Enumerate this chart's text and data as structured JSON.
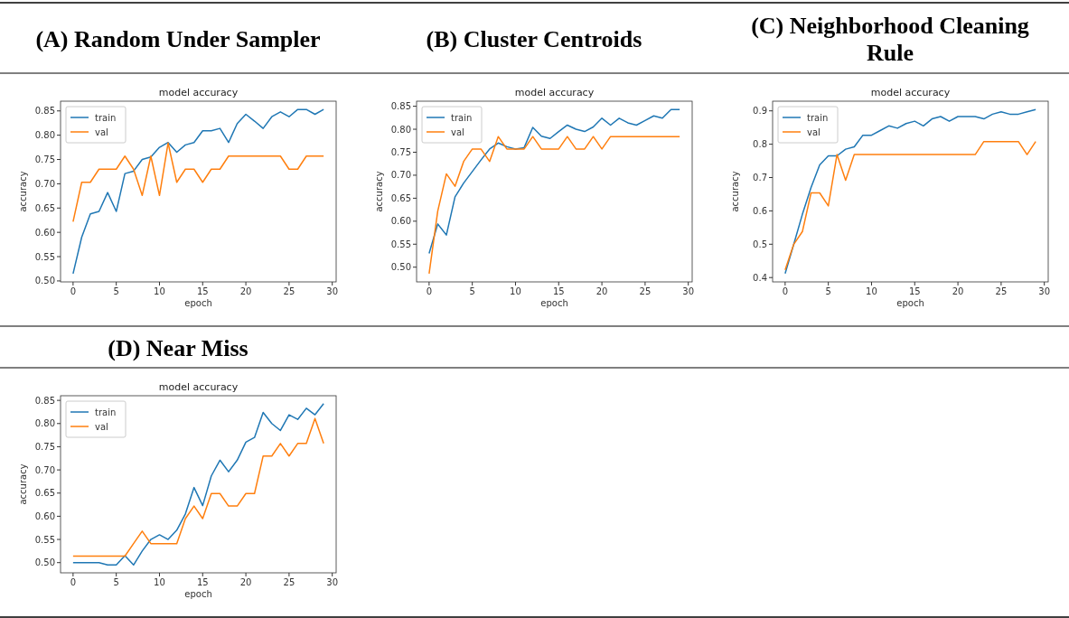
{
  "chart_data": [
    {
      "type": "line",
      "title": "(A) Random Under Sampler",
      "subtitle": "model accuracy",
      "xlabel": "epoch",
      "ylabel": "accuracy",
      "x": [
        0,
        1,
        2,
        3,
        4,
        5,
        6,
        7,
        8,
        9,
        10,
        11,
        12,
        13,
        14,
        15,
        16,
        17,
        18,
        19,
        20,
        21,
        22,
        23,
        24,
        25,
        26,
        27,
        28,
        29
      ],
      "xlim": [
        -1.45,
        30.45
      ],
      "xticks": [
        0,
        5,
        10,
        15,
        20,
        25,
        30
      ],
      "ylim": [
        0.498,
        0.87
      ],
      "yticks": [
        {
          "value": 0.5,
          "label": "0.50"
        },
        {
          "value": 0.55,
          "label": "0.55"
        },
        {
          "value": 0.6,
          "label": "0.60"
        },
        {
          "value": 0.65,
          "label": "0.65"
        },
        {
          "value": 0.7,
          "label": "0.70"
        },
        {
          "value": 0.75,
          "label": "0.75"
        },
        {
          "value": 0.8,
          "label": "0.80"
        },
        {
          "value": 0.85,
          "label": "0.85"
        }
      ],
      "legend": "top left",
      "grid": false,
      "series": [
        {
          "name": "train",
          "color": "#1f77b4",
          "values": [
            0.515,
            0.59,
            0.638,
            0.643,
            0.682,
            0.643,
            0.721,
            0.726,
            0.75,
            0.755,
            0.775,
            0.785,
            0.765,
            0.78,
            0.785,
            0.809,
            0.809,
            0.814,
            0.785,
            0.824,
            0.843,
            0.829,
            0.814,
            0.838,
            0.848,
            0.838,
            0.853,
            0.853,
            0.843,
            0.853
          ]
        },
        {
          "name": "val",
          "color": "#ff7f0e",
          "values": [
            0.622,
            0.703,
            0.703,
            0.73,
            0.73,
            0.73,
            0.757,
            0.73,
            0.676,
            0.757,
            0.676,
            0.784,
            0.703,
            0.73,
            0.73,
            0.703,
            0.73,
            0.73,
            0.757,
            0.757,
            0.757,
            0.757,
            0.757,
            0.757,
            0.757,
            0.73,
            0.73,
            0.757,
            0.757,
            0.757
          ]
        }
      ]
    },
    {
      "type": "line",
      "title": "(B) Cluster Centroids",
      "subtitle": "model accuracy",
      "xlabel": "epoch",
      "ylabel": "accuracy",
      "x": [
        0,
        1,
        2,
        3,
        4,
        5,
        6,
        7,
        8,
        9,
        10,
        11,
        12,
        13,
        14,
        15,
        16,
        17,
        18,
        19,
        20,
        21,
        22,
        23,
        24,
        25,
        26,
        27,
        28,
        29
      ],
      "xlim": [
        -1.45,
        30.45
      ],
      "xticks": [
        0,
        5,
        10,
        15,
        20,
        25,
        30
      ],
      "ylim": [
        0.468,
        0.861
      ],
      "yticks": [
        {
          "value": 0.5,
          "label": "0.50"
        },
        {
          "value": 0.55,
          "label": "0.55"
        },
        {
          "value": 0.6,
          "label": "0.60"
        },
        {
          "value": 0.65,
          "label": "0.65"
        },
        {
          "value": 0.7,
          "label": "0.70"
        },
        {
          "value": 0.75,
          "label": "0.75"
        },
        {
          "value": 0.8,
          "label": "0.80"
        },
        {
          "value": 0.85,
          "label": "0.85"
        }
      ],
      "legend": "top left",
      "grid": false,
      "series": [
        {
          "name": "train",
          "color": "#1f77b4",
          "values": [
            0.53,
            0.594,
            0.57,
            0.653,
            0.683,
            0.708,
            0.733,
            0.757,
            0.77,
            0.762,
            0.757,
            0.76,
            0.804,
            0.785,
            0.78,
            0.795,
            0.809,
            0.8,
            0.795,
            0.805,
            0.824,
            0.809,
            0.824,
            0.814,
            0.809,
            0.819,
            0.829,
            0.824,
            0.843,
            0.843
          ]
        },
        {
          "name": "val",
          "color": "#ff7f0e",
          "values": [
            0.486,
            0.622,
            0.703,
            0.676,
            0.73,
            0.757,
            0.757,
            0.73,
            0.784,
            0.757,
            0.757,
            0.757,
            0.784,
            0.757,
            0.757,
            0.757,
            0.784,
            0.757,
            0.757,
            0.784,
            0.757,
            0.784,
            0.784,
            0.784,
            0.784,
            0.784,
            0.784,
            0.784,
            0.784,
            0.784
          ]
        }
      ]
    },
    {
      "type": "line",
      "title": "(C) Neighborhood Cleaning Rule",
      "subtitle": "model accuracy",
      "xlabel": "epoch",
      "ylabel": "accuracy",
      "x": [
        0,
        1,
        2,
        3,
        4,
        5,
        6,
        7,
        8,
        9,
        10,
        11,
        12,
        13,
        14,
        15,
        16,
        17,
        18,
        19,
        20,
        21,
        22,
        23,
        24,
        25,
        26,
        27,
        28,
        29
      ],
      "xlim": [
        -1.45,
        30.45
      ],
      "xticks": [
        0,
        5,
        10,
        15,
        20,
        25,
        30
      ],
      "ylim": [
        0.387,
        0.929
      ],
      "yticks": [
        0.4,
        0.5,
        0.6,
        0.7,
        0.8,
        0.9
      ],
      "legend": "top left",
      "grid": false,
      "series": [
        {
          "name": "train",
          "color": "#1f77b4",
          "values": [
            0.412,
            0.5,
            0.59,
            0.67,
            0.738,
            0.765,
            0.765,
            0.785,
            0.792,
            0.827,
            0.827,
            0.841,
            0.855,
            0.848,
            0.862,
            0.869,
            0.855,
            0.876,
            0.883,
            0.869,
            0.883,
            0.883,
            0.883,
            0.876,
            0.89,
            0.897,
            0.89,
            0.89,
            0.897,
            0.904
          ]
        },
        {
          "name": "val",
          "color": "#ff7f0e",
          "values": [
            0.423,
            0.5,
            0.538,
            0.654,
            0.654,
            0.615,
            0.769,
            0.692,
            0.769,
            0.769,
            0.769,
            0.769,
            0.769,
            0.769,
            0.769,
            0.769,
            0.769,
            0.769,
            0.769,
            0.769,
            0.769,
            0.769,
            0.769,
            0.808,
            0.808,
            0.808,
            0.808,
            0.808,
            0.769,
            0.808
          ]
        }
      ]
    },
    {
      "type": "line",
      "title": "(D) Near Miss",
      "subtitle": "model accuracy",
      "xlabel": "epoch",
      "ylabel": "accuracy",
      "x": [
        0,
        1,
        2,
        3,
        4,
        5,
        6,
        7,
        8,
        9,
        10,
        11,
        12,
        13,
        14,
        15,
        16,
        17,
        18,
        19,
        20,
        21,
        22,
        23,
        24,
        25,
        26,
        27,
        28,
        29
      ],
      "xlim": [
        -1.45,
        30.45
      ],
      "xticks": [
        0,
        5,
        10,
        15,
        20,
        25,
        30
      ],
      "ylim": [
        0.478,
        0.86
      ],
      "yticks": [
        {
          "value": 0.5,
          "label": "0.50"
        },
        {
          "value": 0.55,
          "label": "0.55"
        },
        {
          "value": 0.6,
          "label": "0.60"
        },
        {
          "value": 0.65,
          "label": "0.65"
        },
        {
          "value": 0.7,
          "label": "0.70"
        },
        {
          "value": 0.75,
          "label": "0.75"
        },
        {
          "value": 0.8,
          "label": "0.80"
        },
        {
          "value": 0.85,
          "label": "0.85"
        }
      ],
      "legend": "top left",
      "grid": false,
      "series": [
        {
          "name": "train",
          "color": "#1f77b4",
          "values": [
            0.5,
            0.5,
            0.5,
            0.5,
            0.495,
            0.495,
            0.515,
            0.495,
            0.525,
            0.55,
            0.56,
            0.55,
            0.57,
            0.605,
            0.662,
            0.623,
            0.687,
            0.721,
            0.696,
            0.721,
            0.76,
            0.77,
            0.824,
            0.8,
            0.785,
            0.819,
            0.809,
            0.833,
            0.819,
            0.843
          ]
        },
        {
          "name": "val",
          "color": "#ff7f0e",
          "values": [
            0.514,
            0.514,
            0.514,
            0.514,
            0.514,
            0.514,
            0.514,
            0.541,
            0.568,
            0.541,
            0.541,
            0.541,
            0.541,
            0.595,
            0.622,
            0.595,
            0.649,
            0.649,
            0.622,
            0.622,
            0.649,
            0.649,
            0.73,
            0.73,
            0.757,
            0.73,
            0.757,
            0.757,
            0.811,
            0.757
          ]
        }
      ]
    }
  ]
}
